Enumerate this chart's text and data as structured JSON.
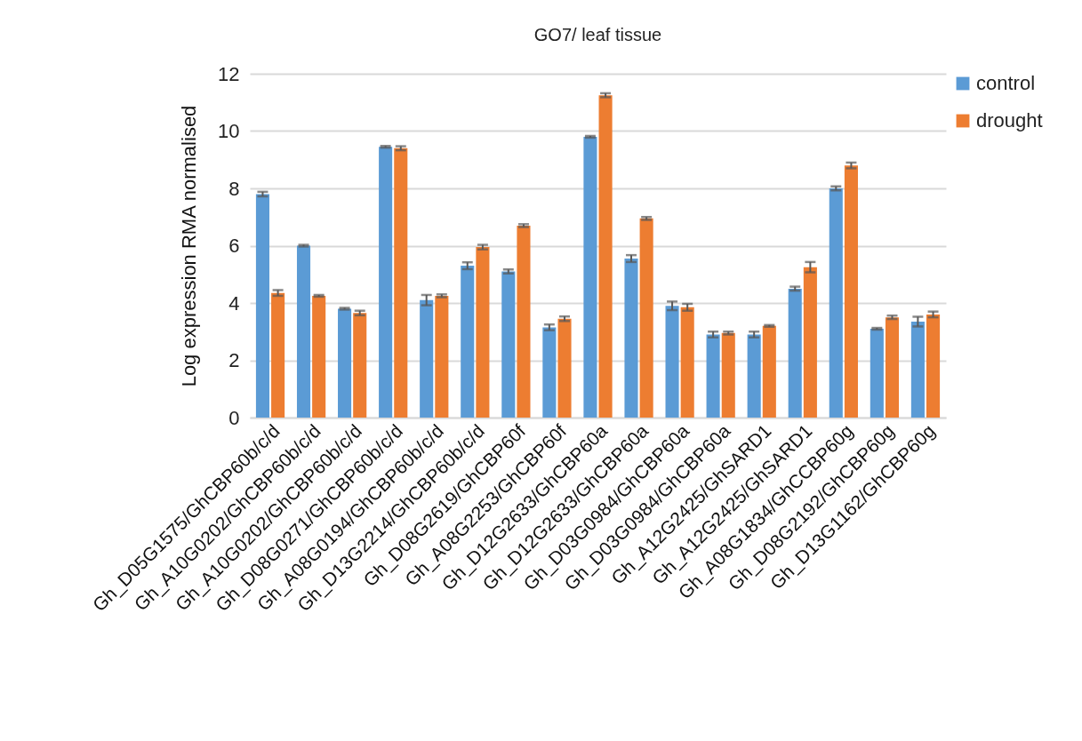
{
  "chart_data": {
    "type": "bar",
    "title": "GO7/ leaf tissue",
    "ylabel": "Log expression RMA normalised",
    "categories": [
      "Gh_D05G1575/GhCBP60b/c/d",
      "Gh_A10G0202/GhCBP60b/c/d",
      "Gh_A10G0202/GhCBP60b/c/d",
      "Gh_D08G0271/GhCBP60b/c/d",
      "Gh_A08G0194/GhCBP60b/c/d",
      "Gh_D13G2214/GhCBP60b/c/d",
      "Gh_D08G2619/GhCBP60f",
      "Gh_A08G2253/GhCBP60f",
      "Gh_D12G2633/GhCBP60a",
      "Gh_D12G2633/GhCBP60a",
      "Gh_D03G0984/GhCBP60a",
      "Gh_D03G0984/GhCBP60a",
      "Gh_A12G2425/GhSARD1",
      "Gh_A12G2425/GhSARD1",
      "Gh_A08G1834/GhCCBP60g",
      "Gh_D08G2192/GhCBP60g",
      "Gh_D13G1162/GhCBP60g"
    ],
    "series": [
      {
        "name": "control",
        "color": "#5b9bd5",
        "values": [
          7.8,
          6.0,
          3.8,
          9.45,
          4.1,
          5.3,
          5.1,
          3.15,
          9.8,
          5.55,
          3.9,
          2.9,
          2.9,
          4.5,
          8.0,
          3.1,
          3.35
        ],
        "errors": [
          0.08,
          0.03,
          0.03,
          0.03,
          0.18,
          0.12,
          0.07,
          0.1,
          0.03,
          0.12,
          0.15,
          0.1,
          0.1,
          0.07,
          0.07,
          0.03,
          0.17
        ]
      },
      {
        "name": "drought",
        "color": "#ed7d31",
        "values": [
          4.35,
          4.25,
          3.65,
          9.4,
          4.25,
          5.95,
          6.7,
          3.45,
          11.25,
          6.95,
          3.85,
          2.95,
          3.2,
          5.25,
          8.8,
          3.5,
          3.6
        ],
        "errors": [
          0.1,
          0.03,
          0.08,
          0.07,
          0.05,
          0.08,
          0.05,
          0.08,
          0.07,
          0.05,
          0.12,
          0.05,
          0.03,
          0.18,
          0.1,
          0.06,
          0.1
        ]
      }
    ],
    "ylim": [
      0,
      12
    ],
    "yticks": [
      0,
      2,
      4,
      6,
      8,
      10,
      12
    ],
    "grid": "y",
    "legend": "top right"
  }
}
